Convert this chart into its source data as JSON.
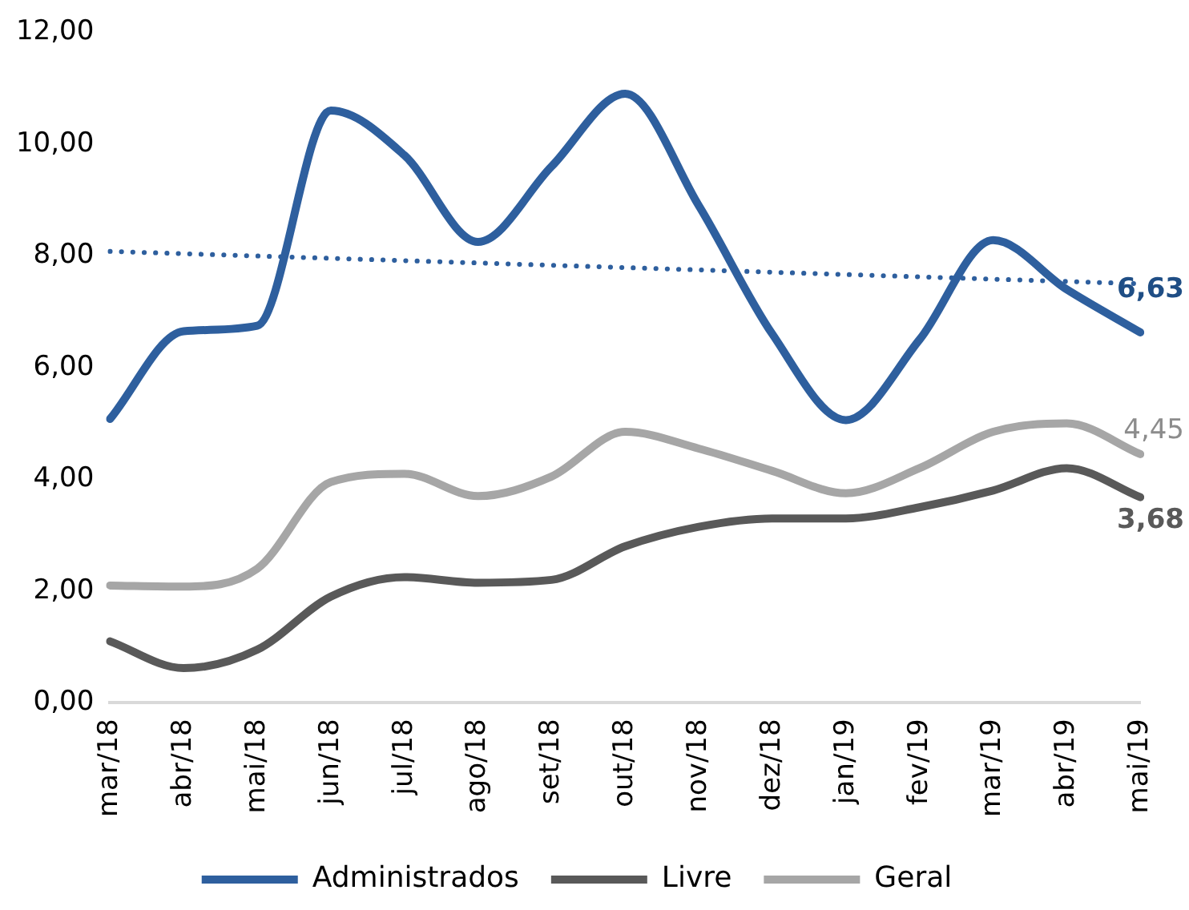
{
  "chart_data": {
    "type": "line",
    "categories": [
      "mar/18",
      "abr/18",
      "mai/18",
      "jun/18",
      "jul/18",
      "ago/18",
      "set/18",
      "out/18",
      "nov/18",
      "dez/18",
      "jan/19",
      "fev/19",
      "mar/19",
      "abr/19",
      "mai/19"
    ],
    "ylim": [
      0,
      12
    ],
    "yticks": [
      {
        "value": 0,
        "label": "0,00"
      },
      {
        "value": 2,
        "label": "2,00"
      },
      {
        "value": 4,
        "label": "4,00"
      },
      {
        "value": 6,
        "label": "6,00"
      },
      {
        "value": 8,
        "label": "8,00"
      },
      {
        "value": 10,
        "label": "10,00"
      },
      {
        "value": 12,
        "label": "12,00"
      }
    ],
    "grid": false,
    "legend": "bottom",
    "marker": "none",
    "series": [
      {
        "name": "Administrados",
        "color": "#2e5f9e",
        "values": [
          5.08,
          6.65,
          6.75,
          10.6,
          9.8,
          8.25,
          9.6,
          10.9,
          8.9,
          6.6,
          5.06,
          6.5,
          8.28,
          7.4,
          6.63
        ],
        "value_labels": [
          null,
          null,
          null,
          null,
          null,
          null,
          null,
          null,
          null,
          null,
          null,
          null,
          null,
          null,
          "6,63"
        ]
      },
      {
        "name": "Livre",
        "color": "#595959",
        "values": [
          1.1,
          0.62,
          0.95,
          1.9,
          2.25,
          2.15,
          2.2,
          2.8,
          3.15,
          3.3,
          3.3,
          3.5,
          3.8,
          4.2,
          3.68
        ],
        "value_labels": [
          null,
          null,
          null,
          null,
          null,
          null,
          null,
          null,
          null,
          null,
          null,
          null,
          null,
          null,
          "3,68"
        ]
      },
      {
        "name": "Geral",
        "color": "#a6a6a6",
        "values": [
          2.1,
          2.08,
          2.4,
          3.95,
          4.1,
          3.7,
          4.05,
          4.85,
          4.55,
          4.15,
          3.75,
          4.2,
          4.85,
          5.0,
          4.45
        ],
        "value_labels": [
          null,
          null,
          null,
          null,
          null,
          null,
          null,
          null,
          null,
          null,
          null,
          null,
          null,
          null,
          "4,45"
        ]
      },
      {
        "type": "line",
        "color": "#2e5f9e",
        "line_style": "dotted",
        "x": [
          "mar/18",
          "mai/19"
        ],
        "values": [
          8.08,
          7.5
        ]
      }
    ]
  }
}
